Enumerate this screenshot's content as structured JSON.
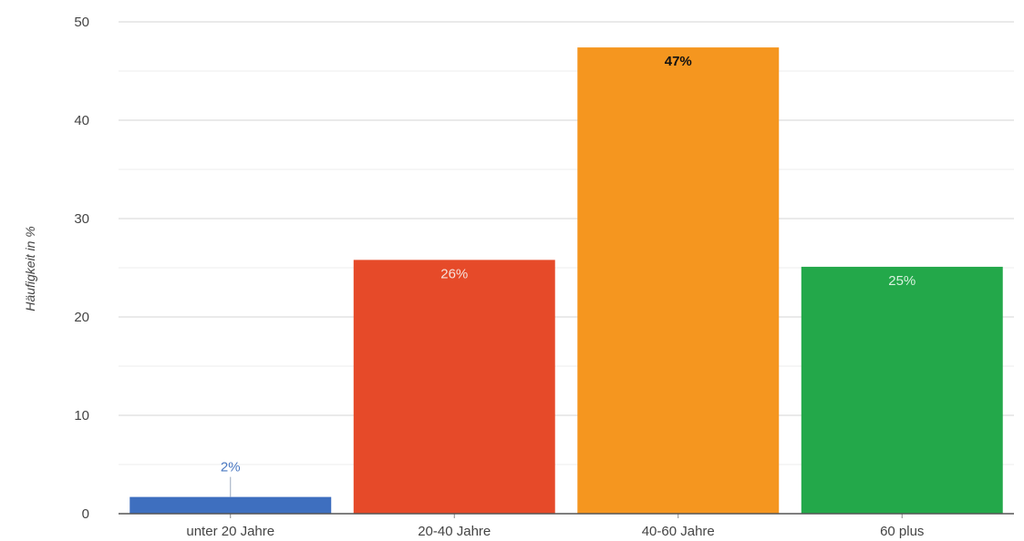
{
  "chart_data": {
    "type": "bar",
    "title": "",
    "xlabel": "",
    "ylabel": "Häufigkeit in %",
    "categories": [
      "unter 20 Jahre",
      "20-40 Jahre",
      "40-60 Jahre",
      "60 plus"
    ],
    "values": [
      1.7,
      25.8,
      47.4,
      25.1
    ],
    "data_labels": [
      "2%",
      "26%",
      "47%",
      "25%"
    ],
    "colors": [
      "#3e6fbf",
      "#e64a29",
      "#f5961f",
      "#23a84a"
    ],
    "label_colors": [
      "#4a78c2",
      "#f5e2dc",
      "#111111",
      "#d9f2df"
    ],
    "ylim": [
      0,
      50
    ],
    "yticks": [
      0,
      10,
      20,
      30,
      40,
      50
    ],
    "grid": true,
    "legend": "none"
  }
}
